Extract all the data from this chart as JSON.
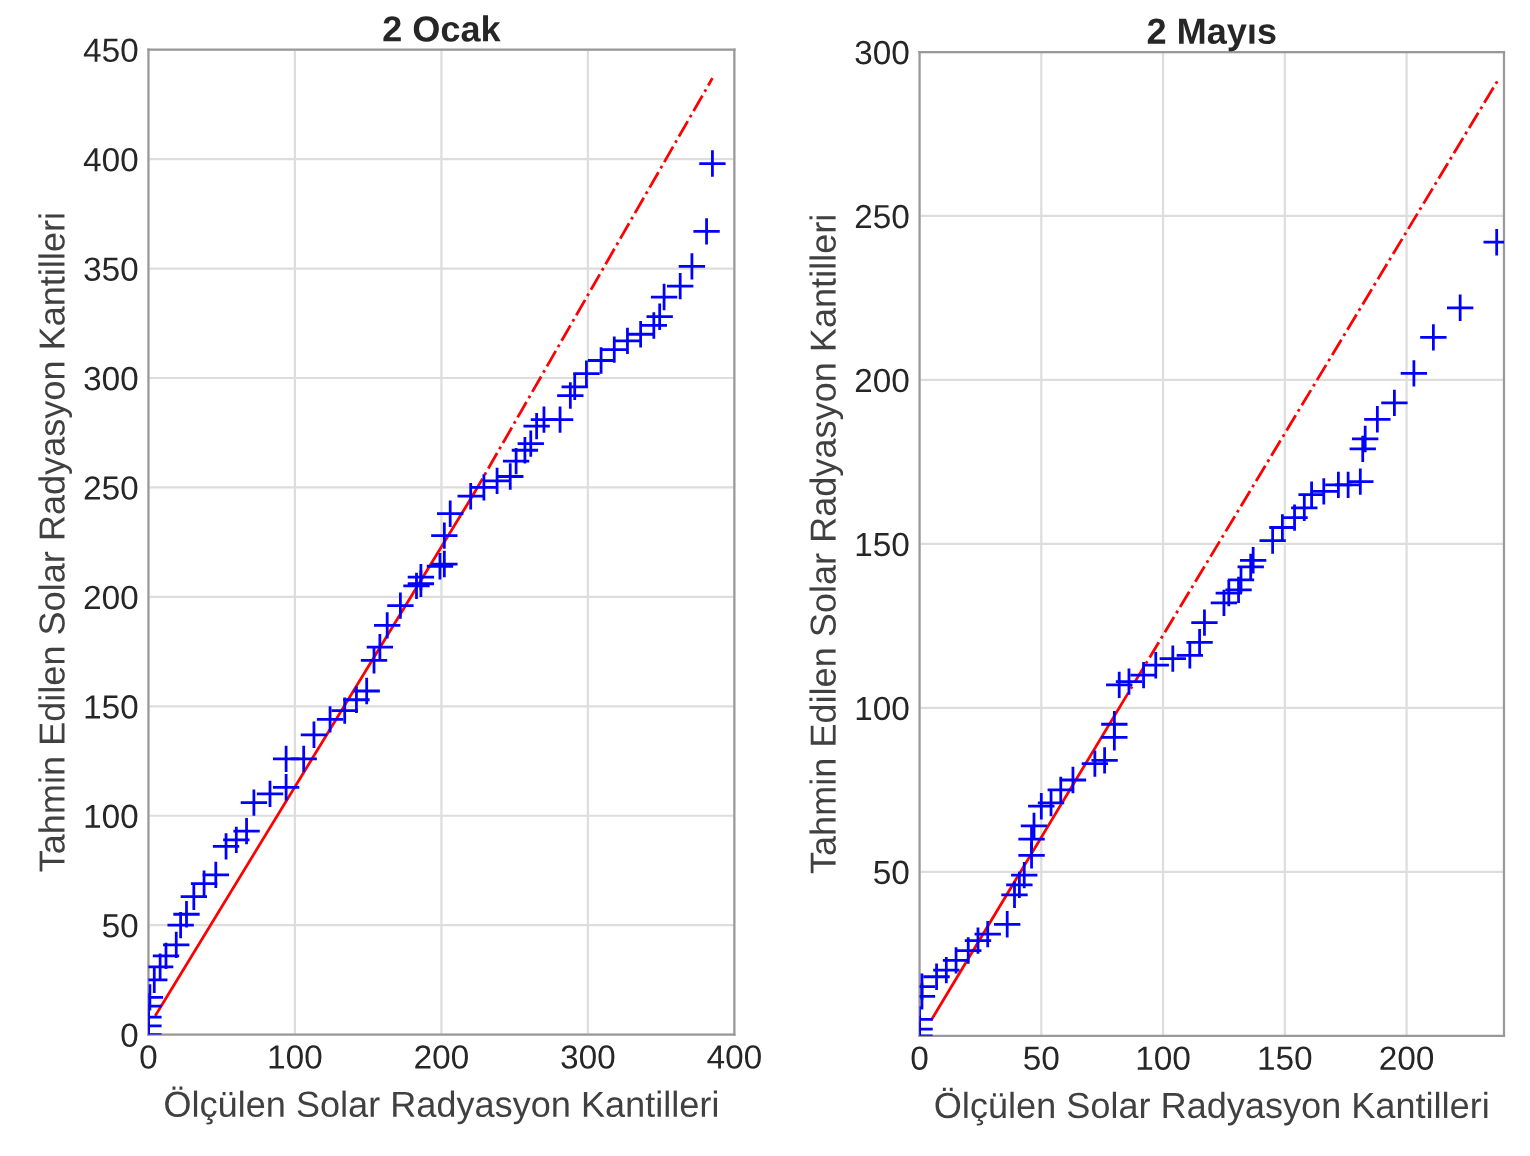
{
  "chart_data": [
    {
      "type": "scatter",
      "title": "2 Ocak",
      "xlabel": "Ölçülen Solar Radyasyon Kantilleri",
      "ylabel": "Tahmin Edilen Solar Radyasyon Kantilleri",
      "xlim": [
        0,
        400
      ],
      "ylim": [
        0,
        450
      ],
      "xticks": [
        0,
        100,
        200,
        300,
        400
      ],
      "yticks": [
        0,
        50,
        100,
        150,
        200,
        250,
        300,
        350,
        400,
        450
      ],
      "grid": true,
      "legend": false,
      "series": [
        {
          "marker": "cross",
          "color": "#0000ff",
          "x": [
            0,
            0,
            0,
            0,
            1,
            4,
            8,
            12,
            19,
            22,
            26,
            31,
            38,
            46,
            53,
            60,
            67,
            72,
            83,
            94,
            94,
            106,
            113,
            124,
            134,
            142,
            149,
            154,
            158,
            163,
            172,
            186,
            199,
            183,
            186,
            202,
            202,
            206,
            220,
            229,
            238,
            247,
            251,
            257,
            261,
            265,
            270,
            281,
            288,
            291,
            299,
            309,
            318,
            327,
            336,
            345,
            349,
            352,
            363,
            371,
            381,
            385
          ],
          "values": [
            0,
            4,
            8,
            13,
            17,
            25,
            31,
            36,
            41,
            50,
            55,
            63,
            69,
            73,
            86,
            89,
            93,
            106,
            110,
            113,
            126,
            126,
            137,
            144,
            148,
            153,
            157,
            171,
            177,
            187,
            196,
            206,
            214,
            205,
            209,
            215,
            228,
            238,
            246,
            250,
            253,
            255,
            262,
            267,
            270,
            278,
            281,
            281,
            292,
            296,
            302,
            308,
            313,
            317,
            320,
            324,
            328,
            337,
            342,
            351,
            367,
            398
          ]
        },
        {
          "type": "line",
          "line_style": "solid",
          "color": "#ff0000",
          "x": [
            5,
            222
          ],
          "values": [
            9,
            247
          ]
        },
        {
          "type": "line",
          "line_style": "dashdot",
          "color": "#ff0000",
          "x": [
            222,
            385
          ],
          "values": [
            247,
            437
          ]
        }
      ]
    },
    {
      "type": "scatter",
      "title": "2 Mayıs",
      "xlabel": "Ölçülen Solar Radyasyon Kantilleri",
      "ylabel": "Tahmin Edilen Solar Radyasyon Kantilleri",
      "xlim": [
        0,
        240
      ],
      "ylim": [
        0,
        300
      ],
      "xticks": [
        0,
        50,
        100,
        150,
        200
      ],
      "yticks": [
        50,
        100,
        150,
        200,
        250,
        300
      ],
      "grid": true,
      "legend": false,
      "series": [
        {
          "marker": "cross",
          "color": "#0000ff",
          "x": [
            0,
            0,
            0,
            1,
            1,
            7,
            11,
            15,
            20,
            24,
            28,
            36,
            39,
            41,
            43,
            46,
            46,
            47,
            50,
            54,
            58,
            63,
            72,
            76,
            80,
            80,
            82,
            86,
            92,
            97,
            104,
            111,
            115,
            117,
            125,
            131,
            136,
            127,
            132,
            137,
            145,
            149,
            154,
            158,
            161,
            166,
            172,
            176,
            181,
            182,
            183,
            188,
            195,
            203,
            211,
            222,
            237
          ],
          "values": [
            0,
            2,
            5,
            12,
            15,
            18,
            20,
            23,
            26,
            29,
            31,
            34,
            43,
            46,
            49,
            55,
            60,
            64,
            70,
            71,
            75,
            78,
            83,
            84,
            91,
            95,
            107,
            108,
            110,
            113,
            115,
            116,
            120,
            126,
            132,
            136,
            143,
            135,
            139,
            145,
            151,
            155,
            158,
            161,
            165,
            166,
            168,
            168,
            169,
            179,
            182,
            188,
            193,
            202,
            213,
            222,
            242
          ]
        },
        {
          "type": "line",
          "line_style": "solid",
          "color": "#ff0000",
          "x": [
            5,
            82
          ],
          "values": [
            5,
            100
          ]
        },
        {
          "type": "line",
          "line_style": "dashdot",
          "color": "#ff0000",
          "x": [
            82,
            238
          ],
          "values": [
            100,
            292
          ]
        }
      ]
    }
  ]
}
